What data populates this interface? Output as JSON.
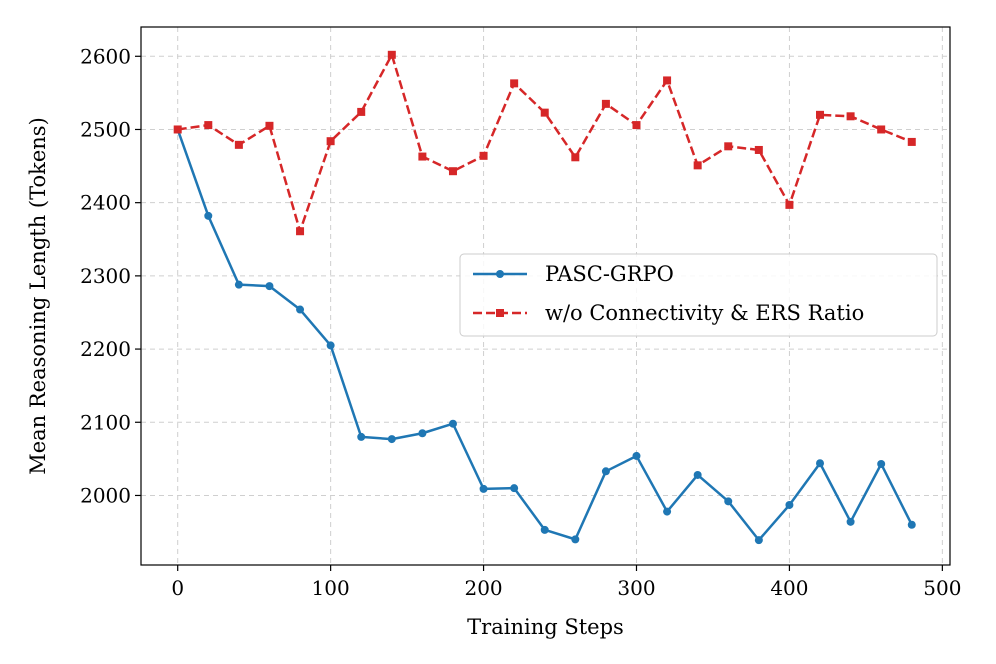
{
  "chart_data": {
    "type": "line",
    "title": "",
    "xlabel": "Training Steps",
    "ylabel": "Mean Reasoning Length (Tokens)",
    "xlim": [
      -24,
      505
    ],
    "ylim": [
      1905,
      2640
    ],
    "xticks": [
      0,
      100,
      200,
      300,
      400,
      500
    ],
    "yticks": [
      2000,
      2100,
      2200,
      2300,
      2400,
      2500,
      2600
    ],
    "grid": true,
    "legend_position": "center-right",
    "x": [
      0,
      20,
      40,
      60,
      80,
      100,
      120,
      140,
      160,
      180,
      200,
      220,
      240,
      260,
      280,
      300,
      320,
      340,
      360,
      380,
      400,
      420,
      440,
      460,
      480
    ],
    "series": [
      {
        "name": "PASC-GRPO",
        "color": "#1f77b4",
        "line_style": "solid",
        "marker": "circle",
        "values": [
          2500,
          2382,
          2288,
          2286,
          2254,
          2205,
          2080,
          2077,
          2085,
          2098,
          2009,
          2010,
          1953,
          1940,
          2033,
          2054,
          1978,
          2028,
          1992,
          1939,
          1987,
          2044,
          1964,
          2043,
          1960
        ]
      },
      {
        "name": "w/o Connectivity & ERS Ratio",
        "color": "#d62728",
        "line_style": "dashed",
        "marker": "square",
        "values": [
          2500,
          2506,
          2479,
          2505,
          2361,
          2484,
          2524,
          2602,
          2463,
          2443,
          2464,
          2563,
          2523,
          2462,
          2535,
          2506,
          2567,
          2451,
          2477,
          2472,
          2397,
          2520,
          2518,
          2500,
          2483
        ]
      }
    ]
  }
}
